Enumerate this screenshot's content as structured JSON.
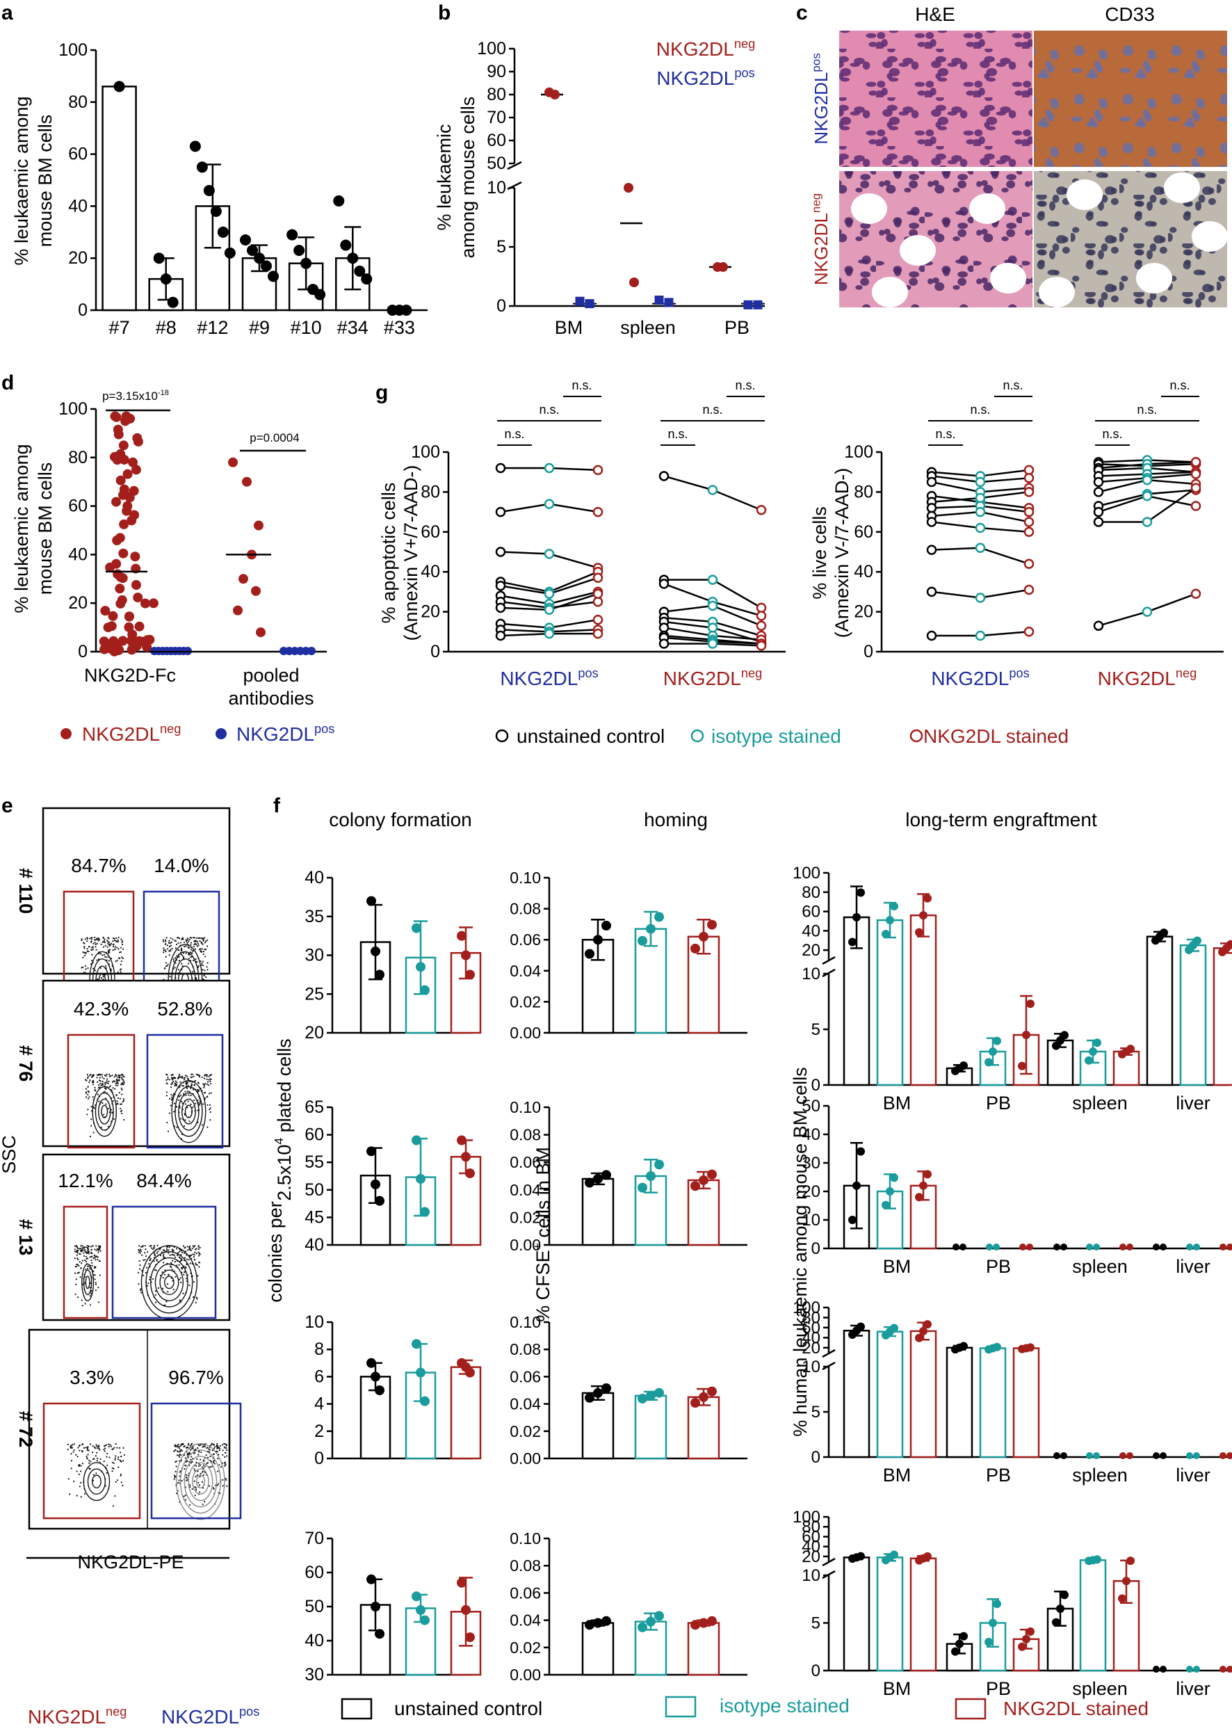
{
  "colors": {
    "neg": "#a31f1c",
    "pos": "#1f2ea0",
    "ctrl": "#000000",
    "iso": "#1a9c9c",
    "nkg": "#a31f1c"
  },
  "panels": {
    "a": "a",
    "b": "b",
    "c": "c",
    "d": "d",
    "e": "e",
    "f": "f",
    "g": "g"
  },
  "labels": {
    "neg": "NKG2DL",
    "pos": "NKG2DL",
    "sup_neg": "neg",
    "sup_pos": "pos"
  },
  "chart_data": [
    {
      "id": "a",
      "type": "bar",
      "ylabel": "% leukaemic among mouse BM cells",
      "ylim": [
        0,
        100
      ],
      "yticks": [
        "0",
        "20",
        "40",
        "60",
        "80",
        "100"
      ],
      "categories": [
        "#7",
        "#8",
        "#12",
        "#9",
        "#10",
        "#34",
        "#33"
      ],
      "values": [
        86,
        12,
        40,
        20,
        18,
        20,
        0
      ],
      "err": [
        0,
        8,
        16,
        5,
        10,
        12,
        0
      ],
      "points": [
        [
          86
        ],
        [
          20,
          12,
          3
        ],
        [
          63,
          55,
          46,
          38,
          30,
          22
        ],
        [
          27,
          23,
          20,
          17,
          13
        ],
        [
          29,
          23,
          18,
          8,
          6
        ],
        [
          42,
          25,
          20,
          15,
          12
        ],
        [
          0,
          0,
          0
        ]
      ]
    },
    {
      "id": "b",
      "type": "scatter",
      "ylabel": "% leukaemic among mouse cells",
      "upper_ticks": [
        "50",
        "60",
        "70",
        "80",
        "90",
        "100"
      ],
      "lower_ticks": [
        "0",
        "5",
        "10"
      ],
      "categories": [
        "BM",
        "spleen",
        "PB"
      ],
      "legend": [
        {
          "text": "NKG2DL",
          "sup": "neg"
        },
        {
          "text": "NKG2DL",
          "sup": "pos"
        }
      ],
      "neg": [
        [
          81,
          80
        ],
        [
          10,
          2
        ],
        [
          3.3,
          3.3
        ]
      ],
      "neg_mean": [
        80,
        7,
        3.3
      ],
      "pos": [
        [
          0.4,
          0.2
        ],
        [
          0.5,
          0.3
        ],
        [
          0.1,
          0.1
        ]
      ]
    },
    {
      "id": "c",
      "type": "image",
      "columns": [
        "H&E",
        "CD33"
      ],
      "rows": [
        {
          "text": "NKG2DL",
          "sup": "pos"
        },
        {
          "text": "NKG2DL",
          "sup": "neg"
        }
      ]
    },
    {
      "id": "d",
      "type": "scatter",
      "ylabel": "% leukaemic among mouse BM cells",
      "ylim": [
        0,
        100
      ],
      "yticks": [
        "0",
        "20",
        "40",
        "60",
        "80",
        "100"
      ],
      "categories": [
        "NKG2D-Fc",
        "pooled antibodies"
      ],
      "pvalues": [
        {
          "text": "p=3.15x10",
          "sup": "-18"
        },
        {
          "text": "p=0.0004",
          "sup": ""
        }
      ],
      "neg_mean": [
        33,
        40
      ],
      "pooled_neg": [
        78,
        70,
        52,
        40,
        30,
        25,
        17,
        8
      ],
      "legend": [
        {
          "text": "NKG2DL",
          "sup": "neg"
        },
        {
          "text": "NKG2DL",
          "sup": "pos"
        }
      ]
    },
    {
      "id": "e",
      "type": "flow",
      "xlabel": "NKG2DL-PE",
      "ylabel": "SSC",
      "samples": [
        {
          "name": "# 110",
          "neg": "84.7%",
          "pos": "14.0%"
        },
        {
          "name": "# 76",
          "neg": "42.3%",
          "pos": "52.8%"
        },
        {
          "name": "# 13",
          "neg": "12.1%",
          "pos": "84.4%"
        },
        {
          "name": "# 72",
          "neg": "3.3%",
          "pos": "96.7%"
        }
      ],
      "legend": [
        {
          "text": "NKG2DL",
          "sup": "neg"
        },
        {
          "text": "NKG2DL",
          "sup": "pos"
        }
      ]
    },
    {
      "id": "f",
      "type": "bar",
      "column_titles": [
        "colony formation",
        "homing",
        "long-term engraftment"
      ],
      "ylabels": {
        "colony_a": "colonies per",
        "colony_b": "2.5x10",
        "colony_sup": "4",
        "colony_c": "plated cells",
        "homing_a": "% CFSE",
        "homing_sup": "+",
        "homing_b": "cells in BM",
        "engraft": "% human leukaemic among mouse BM cells"
      },
      "colony": [
        {
          "ylim": [
            20,
            40
          ],
          "ticks": [
            "20",
            "25",
            "30",
            "35",
            "40"
          ],
          "values": [
            31.7,
            29.7,
            30.3
          ],
          "err": [
            4.8,
            4.7,
            3.3
          ],
          "points": [
            [
              37,
              30.5,
              27.5
            ],
            [
              33.5,
              28.5,
              25.5
            ],
            [
              32.5,
              30,
              27.5
            ]
          ]
        },
        {
          "ylim": [
            40,
            65
          ],
          "ticks": [
            "40",
            "45",
            "50",
            "55",
            "60",
            "65"
          ],
          "values": [
            52.6,
            52.3,
            56
          ],
          "err": [
            5,
            7,
            3
          ],
          "points": [
            [
              57,
              51,
              48
            ],
            [
              59,
              52,
              46
            ],
            [
              59,
              56,
              53
            ]
          ]
        },
        {
          "ylim": [
            0,
            10
          ],
          "ticks": [
            "0",
            "2",
            "4",
            "6",
            "8",
            "10"
          ],
          "values": [
            6,
            6.3,
            6.7
          ],
          "err": [
            1,
            2.1,
            0.5
          ],
          "points": [
            [
              7,
              6,
              5
            ],
            [
              8.4,
              6.3,
              4.2
            ],
            [
              7,
              6.7,
              6.3
            ]
          ]
        },
        {
          "ylim": [
            30,
            70
          ],
          "ticks": [
            "30",
            "40",
            "50",
            "60",
            "70"
          ],
          "values": [
            50.5,
            49.5,
            48.5
          ],
          "err": [
            7.5,
            4,
            10
          ],
          "points": [
            [
              58,
              50,
              42
            ],
            [
              53,
              49,
              46
            ],
            [
              57,
              49,
              41
            ]
          ]
        }
      ],
      "homing": {
        "ticks": [
          "0.00",
          "0.02",
          "0.04",
          "0.06",
          "0.08",
          "0.10"
        ],
        "values": [
          [
            0.06,
            0.067,
            0.062
          ],
          [
            0.048,
            0.05,
            0.047
          ],
          [
            0.048,
            0.046,
            0.045
          ],
          [
            0.038,
            0.039,
            0.038
          ]
        ],
        "err": [
          [
            0.013,
            0.011,
            0.011
          ],
          [
            0.004,
            0.012,
            0.006
          ],
          [
            0.005,
            0.003,
            0.006
          ],
          [
            0.002,
            0.006,
            0.002
          ]
        ]
      },
      "engraft": {
        "categories": [
          "BM",
          "PB",
          "spleen",
          "liver"
        ],
        "upper_ticks": [
          "20",
          "40",
          "60",
          "80",
          "100"
        ],
        "lower_ticks": [
          "0",
          "5",
          "10"
        ],
        "wide_ticks": [
          "0",
          "10",
          "20",
          "30",
          "40",
          "50"
        ],
        "rows": [
          {
            "type": "broken",
            "values": [
              [
                54,
                51,
                56
              ],
              [
                1.5,
                3,
                4.5
              ],
              [
                4,
                3,
                3
              ],
              [
                34,
                25,
                22
              ]
            ],
            "err": [
              [
                32,
                18,
                22
              ],
              [
                0.3,
                1.2,
                3.5
              ],
              [
                0.6,
                1,
                0.3
              ],
              [
                5,
                6,
                5
              ]
            ]
          },
          {
            "type": "linear",
            "values": [
              [
                22,
                20,
                22
              ],
              [
                0,
                0,
                0
              ],
              [
                0,
                0,
                0
              ],
              [
                0,
                0,
                0
              ]
            ],
            "err": [
              [
                15,
                6,
                5
              ],
              [
                0,
                0,
                0
              ],
              [
                0,
                0,
                0
              ],
              [
                0,
                0,
                0
              ]
            ]
          },
          {
            "type": "broken",
            "values": [
              [
                54,
                52,
                53
              ],
              [
                20,
                19,
                19
              ],
              [
                0,
                0,
                0
              ],
              [
                0,
                0,
                0
              ]
            ],
            "err": [
              [
                10,
                9,
                17
              ],
              [
                4,
                3,
                2
              ],
              [
                0,
                0,
                0
              ],
              [
                0,
                0,
                0
              ]
            ]
          },
          {
            "type": "broken",
            "values": [
              [
                18,
                18,
                16
              ],
              [
                2.8,
                5,
                3.3
              ],
              [
                6.5,
                12.5,
                9.4
              ],
              [
                0,
                0,
                0
              ]
            ],
            "err": [
              [
                3,
                7,
                5
              ],
              [
                1,
                2.5,
                1
              ],
              [
                1.8,
                1.8,
                2.3
              ],
              [
                0,
                0,
                0
              ]
            ]
          }
        ]
      },
      "legend": [
        "unstained control",
        "isotype stained",
        "NKG2DL stained"
      ]
    },
    {
      "id": "g",
      "type": "line",
      "left": {
        "ylabel": "% apoptotic cells",
        "ylabel2": "(Annexin V+/7-AAD-)",
        "ylim": [
          0,
          100
        ],
        "yticks": [
          "0",
          "20",
          "40",
          "60",
          "80",
          "100"
        ],
        "pos": [
          [
            92,
            92,
            91
          ],
          [
            70,
            74,
            70
          ],
          [
            50,
            49,
            42
          ],
          [
            35,
            30,
            40
          ],
          [
            33,
            29,
            37
          ],
          [
            28,
            24,
            30
          ],
          [
            25,
            22,
            25
          ],
          [
            22,
            21,
            29
          ],
          [
            14,
            12,
            16
          ],
          [
            11,
            10,
            11
          ],
          [
            8,
            9,
            9
          ]
        ],
        "neg": [
          [
            88,
            81,
            71
          ],
          [
            36,
            36,
            22
          ],
          [
            34,
            25,
            18
          ],
          [
            20,
            23,
            13
          ],
          [
            17,
            15,
            8
          ],
          [
            15,
            12,
            5
          ],
          [
            12,
            8,
            6
          ],
          [
            8,
            6,
            4
          ],
          [
            7,
            5,
            4
          ],
          [
            4,
            4,
            3
          ]
        ]
      },
      "right": {
        "ylabel": "% live cells",
        "ylabel2": "(Annexin V-/7-AAD-)",
        "ylim": [
          0,
          100
        ],
        "yticks": [
          "0",
          "20",
          "40",
          "60",
          "80",
          "100"
        ],
        "pos": [
          [
            90,
            88,
            91
          ],
          [
            88,
            85,
            87
          ],
          [
            85,
            80,
            82
          ],
          [
            78,
            75,
            72
          ],
          [
            75,
            77,
            80
          ],
          [
            72,
            73,
            70
          ],
          [
            68,
            70,
            65
          ],
          [
            65,
            62,
            60
          ],
          [
            51,
            52,
            44
          ],
          [
            30,
            27,
            31
          ],
          [
            8,
            8,
            10
          ]
        ],
        "neg": [
          [
            95,
            96,
            95
          ],
          [
            94,
            93,
            94
          ],
          [
            92,
            94,
            95
          ],
          [
            91,
            92,
            90
          ],
          [
            88,
            89,
            90
          ],
          [
            85,
            87,
            89
          ],
          [
            80,
            86,
            84
          ],
          [
            73,
            79,
            81
          ],
          [
            70,
            78,
            73
          ],
          [
            65,
            65,
            82
          ],
          [
            13,
            20,
            29
          ]
        ]
      },
      "categories": [
        {
          "text": "NKG2DL",
          "sup": "pos"
        },
        {
          "text": "NKG2DL",
          "sup": "neg"
        }
      ],
      "sig": "n.s.",
      "legend": [
        "unstained control",
        "isotype stained",
        "NKG2DL stained"
      ]
    }
  ]
}
